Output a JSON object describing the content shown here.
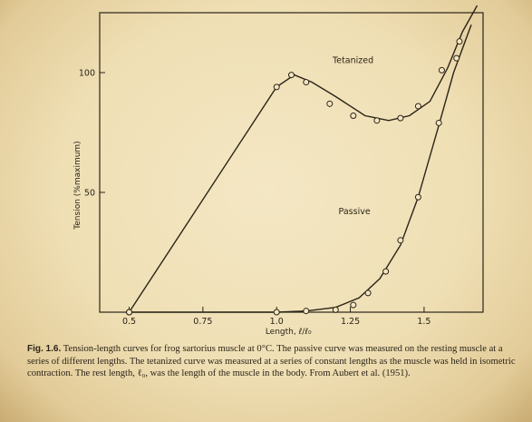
{
  "caption": {
    "figure_label": "Fig. 1.6.",
    "text": "Tension-length curves for frog sartorius muscle at 0°C. The passive curve was measured on the resting muscle at a series of different lengths. The tetanized curve was measured at a series of constant lengths as the muscle was held in isometric contraction. The rest length, ℓ₀, was the length of the muscle in the body. From Aubert et al. (1951)."
  },
  "chart_data": {
    "type": "line",
    "xlabel": "Length, ℓ/ℓ₀",
    "ylabel": "Tension (%maximum)",
    "xlim": [
      0.4,
      1.7
    ],
    "ylim": [
      0,
      125
    ],
    "x_ticks": [
      0.5,
      0.75,
      1.0,
      1.25,
      1.5
    ],
    "x_tick_labels": [
      "0.5",
      "0.75",
      "1.0",
      "1.25",
      "1.5"
    ],
    "y_ticks": [
      50,
      100
    ],
    "y_tick_labels": [
      "50",
      "100"
    ],
    "grid": false,
    "series": [
      {
        "name": "Tetanized",
        "label_at": [
          1.19,
          104
        ],
        "line": [
          [
            0.5,
            0
          ],
          [
            1.0,
            94
          ],
          [
            1.06,
            99
          ],
          [
            1.12,
            96
          ],
          [
            1.2,
            90
          ],
          [
            1.3,
            82
          ],
          [
            1.38,
            80
          ],
          [
            1.45,
            82
          ],
          [
            1.52,
            88
          ],
          [
            1.58,
            102
          ],
          [
            1.63,
            117
          ],
          [
            1.68,
            128
          ]
        ],
        "points": [
          [
            0.5,
            0
          ],
          [
            1.0,
            94
          ],
          [
            1.05,
            99
          ],
          [
            1.1,
            96
          ],
          [
            1.18,
            87
          ],
          [
            1.26,
            82
          ],
          [
            1.34,
            80
          ],
          [
            1.42,
            81
          ],
          [
            1.48,
            86
          ],
          [
            1.56,
            101
          ],
          [
            1.62,
            113
          ]
        ]
      },
      {
        "name": "Passive",
        "label_at": [
          1.21,
          41
        ],
        "line": [
          [
            0.5,
            0
          ],
          [
            0.65,
            0
          ],
          [
            1.0,
            0
          ],
          [
            1.1,
            0.5
          ],
          [
            1.2,
            2
          ],
          [
            1.28,
            6
          ],
          [
            1.35,
            14
          ],
          [
            1.42,
            28
          ],
          [
            1.48,
            48
          ],
          [
            1.55,
            78
          ],
          [
            1.6,
            100
          ],
          [
            1.66,
            120
          ]
        ],
        "points": [
          [
            0.5,
            0
          ],
          [
            1.0,
            0
          ],
          [
            1.1,
            0.5
          ],
          [
            1.2,
            1
          ],
          [
            1.26,
            3
          ],
          [
            1.31,
            8
          ],
          [
            1.37,
            17
          ],
          [
            1.42,
            30
          ],
          [
            1.48,
            48
          ],
          [
            1.55,
            79
          ],
          [
            1.61,
            106
          ]
        ]
      }
    ]
  }
}
